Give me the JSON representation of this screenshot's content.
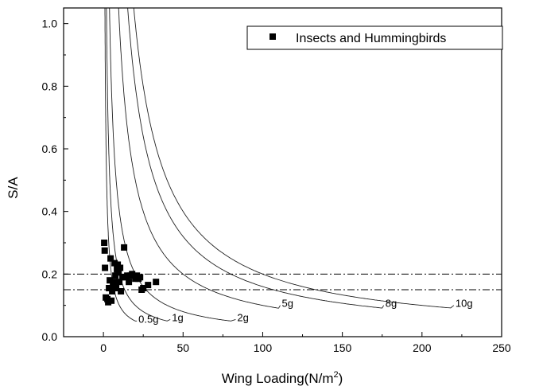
{
  "chart_data": {
    "type": "scatter",
    "xlabel": "Wing Loading(N/m",
    "xlabel_sup": "2",
    "xlabel_end": ")",
    "ylabel": "S/A",
    "xlim": [
      -25,
      250
    ],
    "ylim": [
      0,
      1.05
    ],
    "xticks": [
      0,
      50,
      100,
      150,
      200,
      250
    ],
    "yticks": [
      0.0,
      0.2,
      0.4,
      0.6,
      0.8,
      1.0
    ],
    "xtick_labels": [
      "0",
      "50",
      "100",
      "150",
      "200",
      "250"
    ],
    "ytick_labels": [
      "0.0",
      "0.2",
      "0.4",
      "0.6",
      "0.8",
      "1.0"
    ],
    "grid": false,
    "legend": {
      "position": "top-right",
      "label": "Insects and Hummingbirds",
      "marker": "square"
    },
    "series": [
      {
        "name": "Insects and Hummingbirds",
        "points": [
          [
            0.5,
            0.3
          ],
          [
            0.8,
            0.275
          ],
          [
            1.0,
            0.22
          ],
          [
            1.5,
            0.125
          ],
          [
            2.5,
            0.12
          ],
          [
            3.0,
            0.11
          ],
          [
            3.5,
            0.155
          ],
          [
            4.0,
            0.18
          ],
          [
            4.5,
            0.25
          ],
          [
            5.0,
            0.115
          ],
          [
            5.5,
            0.145
          ],
          [
            6.0,
            0.165
          ],
          [
            6.5,
            0.175
          ],
          [
            7.0,
            0.235
          ],
          [
            7.5,
            0.195
          ],
          [
            8.0,
            0.155
          ],
          [
            8.5,
            0.215
          ],
          [
            9.0,
            0.23
          ],
          [
            9.5,
            0.205
          ],
          [
            10.0,
            0.175
          ],
          [
            10.5,
            0.22
          ],
          [
            11.0,
            0.145
          ],
          [
            12.0,
            0.19
          ],
          [
            13.0,
            0.285
          ],
          [
            14.0,
            0.19
          ],
          [
            15.0,
            0.195
          ],
          [
            16.0,
            0.175
          ],
          [
            17.0,
            0.195
          ],
          [
            18.0,
            0.2
          ],
          [
            20.0,
            0.185
          ],
          [
            21.0,
            0.195
          ],
          [
            22.0,
            0.185
          ],
          [
            23.0,
            0.19
          ],
          [
            24.0,
            0.15
          ],
          [
            25.0,
            0.155
          ],
          [
            28.0,
            0.165
          ],
          [
            33.0,
            0.175
          ]
        ]
      }
    ],
    "curves": [
      {
        "label": "0.5g",
        "C": 0.5,
        "end_x": 20,
        "label_x": 22.0,
        "label_y": 0.045
      },
      {
        "label": "1g",
        "C": 1,
        "end_x": 40,
        "label_x": 43.0,
        "label_y": 0.05
      },
      {
        "label": "2g",
        "C": 2,
        "end_x": 80,
        "label_x": 84.0,
        "label_y": 0.05
      },
      {
        "label": "5g",
        "C": 5,
        "end_x": 110,
        "label_x": 112.0,
        "label_y": 0.095
      },
      {
        "label": "8g",
        "C": 8,
        "end_x": 175,
        "label_x": 177.0,
        "label_y": 0.095
      },
      {
        "label": "10g",
        "C": 10,
        "end_x": 218,
        "label_x": 221.0,
        "label_y": 0.095
      }
    ],
    "reference_lines": [
      {
        "y": 0.2,
        "style": "dash-dot"
      },
      {
        "y": 0.15,
        "style": "dash-dot"
      }
    ]
  }
}
